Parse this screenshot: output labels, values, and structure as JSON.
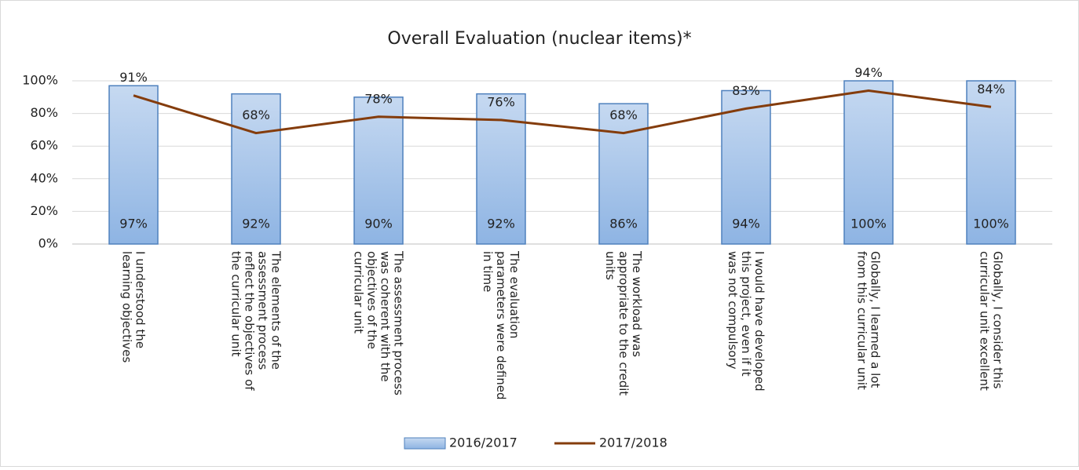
{
  "chart_data": {
    "type": "combo",
    "title": "Overall Evaluation (nuclear items)*",
    "categories": [
      "I understood the learning objectives",
      "The elements of the assessment process reflect the objectives of the curricular unit",
      "The assessment process was coherent with the objectives of the curricular unit",
      "The evaluation parameters were defined in time",
      "The workload was appropriate to the credit units",
      "I would have developed this project, even if it was not compulsory",
      "Globally, I learned a lot from this curricular unit",
      "Globally, I consider this curricular unit excellent"
    ],
    "series": [
      {
        "name": "2016/2017",
        "type": "bar",
        "color": "#a9c4eb",
        "values": [
          97,
          92,
          90,
          92,
          86,
          94,
          100,
          100
        ],
        "value_labels": [
          "97%",
          "92%",
          "90%",
          "92%",
          "86%",
          "94%",
          "100%",
          "100%"
        ]
      },
      {
        "name": "2017/2018",
        "type": "line",
        "color": "#843c0c",
        "values": [
          91,
          68,
          78,
          76,
          68,
          83,
          94,
          84
        ],
        "value_labels": [
          "91%",
          "68%",
          "78%",
          "76%",
          "68%",
          "83%",
          "94%",
          "84%"
        ]
      }
    ],
    "ylim": [
      0,
      100
    ],
    "yticks": [
      {
        "value": 0,
        "label": "0%"
      },
      {
        "value": 20,
        "label": "20%"
      },
      {
        "value": 40,
        "label": "40%"
      },
      {
        "value": 60,
        "label": "60%"
      },
      {
        "value": 80,
        "label": "80%"
      },
      {
        "value": 100,
        "label": "100%"
      }
    ],
    "grid": true,
    "legend": "bottom"
  }
}
